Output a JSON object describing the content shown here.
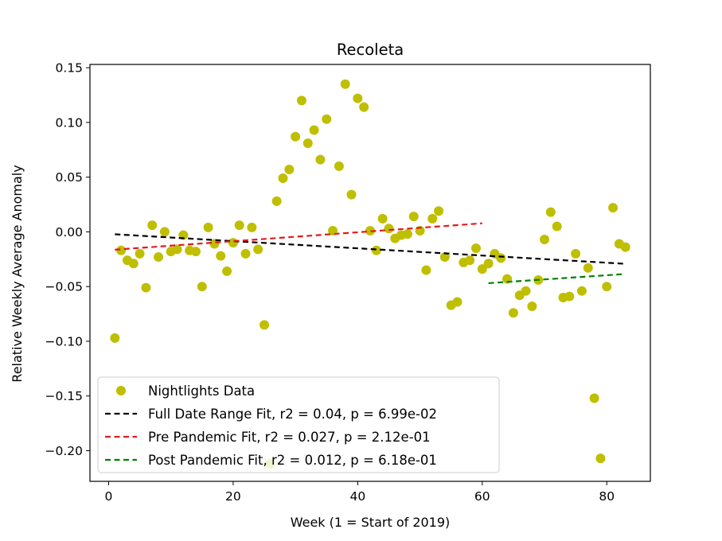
{
  "chart_data": {
    "type": "scatter",
    "title": "Recoleta",
    "xlabel": "Week (1 = Start of 2019)",
    "ylabel": "Relative Weekly Average Anomaly",
    "xlim": [
      -3,
      87
    ],
    "ylim": [
      -0.228,
      0.153
    ],
    "xticks": [
      0,
      20,
      40,
      60,
      80
    ],
    "xtick_labels": [
      "0",
      "20",
      "40",
      "60",
      "80"
    ],
    "yticks": [
      -0.2,
      -0.15,
      -0.1,
      -0.05,
      0.0,
      0.05,
      0.1,
      0.15
    ],
    "ytick_labels": [
      "−0.20",
      "−0.15",
      "−0.10",
      "−0.05",
      "0.00",
      "0.05",
      "0.10",
      "0.15"
    ],
    "grid": false,
    "legend_position": "lower-left",
    "series": [
      {
        "name": "Nightlights Data",
        "kind": "scatter",
        "color": "#bfbf00",
        "x": [
          1,
          2,
          3,
          4,
          5,
          6,
          7,
          8,
          9,
          10,
          11,
          12,
          13,
          14,
          15,
          16,
          17,
          18,
          19,
          20,
          21,
          22,
          23,
          24,
          25,
          26,
          27,
          28,
          29,
          30,
          31,
          32,
          33,
          34,
          35,
          36,
          37,
          38,
          39,
          40,
          41,
          42,
          43,
          44,
          45,
          46,
          47,
          48,
          49,
          50,
          51,
          52,
          53,
          54,
          55,
          56,
          57,
          58,
          59,
          60,
          61,
          62,
          63,
          64,
          65,
          66,
          67,
          68,
          69,
          70,
          71,
          72,
          73,
          74,
          75,
          76,
          77,
          78,
          79,
          80,
          81,
          82,
          83
        ],
        "y": [
          -0.097,
          -0.017,
          -0.026,
          -0.029,
          -0.02,
          -0.051,
          0.006,
          -0.023,
          0.0,
          -0.018,
          -0.016,
          -0.003,
          -0.017,
          -0.018,
          -0.05,
          0.004,
          -0.011,
          -0.022,
          -0.036,
          -0.01,
          0.006,
          -0.02,
          0.004,
          -0.016,
          -0.085,
          -0.212,
          0.028,
          0.049,
          0.057,
          0.087,
          0.12,
          0.081,
          0.093,
          0.066,
          0.103,
          0.001,
          0.06,
          0.135,
          0.034,
          0.122,
          0.114,
          0.001,
          -0.017,
          0.012,
          0.003,
          -0.006,
          -0.003,
          -0.002,
          0.014,
          0.001,
          -0.035,
          0.012,
          0.019,
          -0.023,
          -0.067,
          -0.064,
          -0.028,
          -0.026,
          -0.015,
          -0.034,
          -0.029,
          -0.02,
          -0.024,
          -0.043,
          -0.074,
          -0.058,
          -0.054,
          -0.068,
          -0.044,
          -0.007,
          0.018,
          0.005,
          -0.06,
          -0.059,
          -0.02,
          -0.054,
          -0.033,
          -0.152,
          -0.207,
          -0.05,
          0.022,
          -0.011,
          -0.014
        ]
      },
      {
        "name": "Full Date Range Fit, r2 = 0.04, p = 6.99e-02",
        "kind": "line",
        "color": "#000000",
        "x": [
          1,
          83
        ],
        "y": [
          -0.0022,
          -0.0292
        ]
      },
      {
        "name": "Pre Pandemic Fit, r2 = 0.027, p = 2.12e-01",
        "kind": "line",
        "color": "#e31a1c",
        "x": [
          1,
          60
        ],
        "y": [
          -0.0163,
          0.0078
        ]
      },
      {
        "name": "Post Pandemic Fit, r2 = 0.012, p = 6.18e-01",
        "kind": "line",
        "color": "#008000",
        "x": [
          61,
          83
        ],
        "y": [
          -0.0469,
          -0.0385
        ]
      }
    ]
  }
}
